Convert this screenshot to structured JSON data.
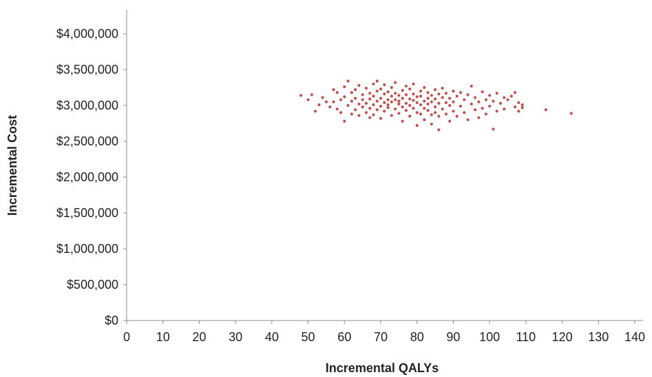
{
  "chart_data": {
    "type": "scatter",
    "xlabel": "Incremental QALYs",
    "ylabel": "Incremental Cost",
    "xlim": [
      0,
      140
    ],
    "ylim": [
      0,
      4000000
    ],
    "x_ticks": [
      0,
      10,
      20,
      30,
      40,
      50,
      60,
      70,
      80,
      90,
      100,
      110,
      120,
      130,
      140
    ],
    "x_tick_labels": [
      "0",
      "10",
      "20",
      "30",
      "40",
      "50",
      "60",
      "70",
      "80",
      "90",
      "100",
      "110",
      "120",
      "130",
      "140"
    ],
    "y_ticks": [
      0,
      500000,
      1000000,
      1500000,
      2000000,
      2500000,
      3000000,
      3500000,
      4000000
    ],
    "y_tick_labels": [
      "$0",
      "$500,000",
      "$1,000,000",
      "$1,500,000",
      "$2,000,000",
      "$2,500,000",
      "$3,000,000",
      "$3,500,000",
      "$4,000,000"
    ],
    "grid": false,
    "legend": "none",
    "marker_color": "#C0504D",
    "series": [
      {
        "points": [
          [
            48,
            3140000
          ],
          [
            50,
            3080000
          ],
          [
            51,
            3150000
          ],
          [
            52,
            2920000
          ],
          [
            53,
            3010000
          ],
          [
            54,
            3110000
          ],
          [
            55,
            3050000
          ],
          [
            56,
            2980000
          ],
          [
            57,
            3220000
          ],
          [
            57,
            3050000
          ],
          [
            58,
            2950000
          ],
          [
            58,
            3180000
          ],
          [
            59,
            3080000
          ],
          [
            59,
            2900000
          ],
          [
            60,
            2780000
          ],
          [
            60,
            3260000
          ],
          [
            60,
            3120000
          ],
          [
            61,
            3000000
          ],
          [
            61,
            3340000
          ],
          [
            62,
            3180000
          ],
          [
            62,
            2880000
          ],
          [
            62,
            3060000
          ],
          [
            63,
            3220000
          ],
          [
            63,
            2940000
          ],
          [
            63,
            3100000
          ],
          [
            64,
            3020000
          ],
          [
            64,
            3280000
          ],
          [
            64,
            2860000
          ],
          [
            65,
            3150000
          ],
          [
            65,
            2980000
          ],
          [
            65,
            3080000
          ],
          [
            66,
            3240000
          ],
          [
            66,
            2900000
          ],
          [
            66,
            3030000
          ],
          [
            67,
            3170000
          ],
          [
            67,
            2830000
          ],
          [
            67,
            3090000
          ],
          [
            67,
            2960000
          ],
          [
            68,
            3300000
          ],
          [
            68,
            3130000
          ],
          [
            68,
            3010000
          ],
          [
            68,
            2870000
          ],
          [
            69,
            3200000
          ],
          [
            69,
            3060000
          ],
          [
            69,
            2940000
          ],
          [
            69,
            3340000
          ],
          [
            70,
            3100000
          ],
          [
            70,
            2990000
          ],
          [
            70,
            3230000
          ],
          [
            70,
            2820000
          ],
          [
            71,
            3160000
          ],
          [
            71,
            3040000
          ],
          [
            71,
            2920000
          ],
          [
            71,
            3290000
          ],
          [
            72,
            3080000
          ],
          [
            72,
            2970000
          ],
          [
            72,
            3190000
          ],
          [
            72,
            3010000
          ],
          [
            73,
            3130000
          ],
          [
            73,
            2860000
          ],
          [
            73,
            3250000
          ],
          [
            73,
            3050000
          ],
          [
            74,
            2950000
          ],
          [
            74,
            3170000
          ],
          [
            74,
            3080000
          ],
          [
            74,
            3320000
          ],
          [
            75,
            3020000
          ],
          [
            75,
            2890000
          ],
          [
            75,
            3140000
          ],
          [
            75,
            3060000
          ],
          [
            76,
            3210000
          ],
          [
            76,
            2980000
          ],
          [
            76,
            3100000
          ],
          [
            76,
            2780000
          ],
          [
            77,
            3270000
          ],
          [
            77,
            3030000
          ],
          [
            77,
            2930000
          ],
          [
            77,
            3150000
          ],
          [
            78,
            3090000
          ],
          [
            78,
            2850000
          ],
          [
            78,
            3230000
          ],
          [
            78,
            3000000
          ],
          [
            79,
            3160000
          ],
          [
            79,
            2960000
          ],
          [
            79,
            3070000
          ],
          [
            79,
            3300000
          ],
          [
            80,
            3120000
          ],
          [
            80,
            2900000
          ],
          [
            80,
            3040000
          ],
          [
            80,
            2720000
          ],
          [
            81,
            3200000
          ],
          [
            81,
            3010000
          ],
          [
            81,
            2880000
          ],
          [
            81,
            3130000
          ],
          [
            82,
            3060000
          ],
          [
            82,
            2960000
          ],
          [
            82,
            3250000
          ],
          [
            82,
            2800000
          ],
          [
            83,
            3100000
          ],
          [
            83,
            2930000
          ],
          [
            83,
            3180000
          ],
          [
            83,
            3020000
          ],
          [
            84,
            2870000
          ],
          [
            84,
            3140000
          ],
          [
            84,
            3050000
          ],
          [
            84,
            2740000
          ],
          [
            85,
            3220000
          ],
          [
            85,
            2980000
          ],
          [
            85,
            3090000
          ],
          [
            85,
            2900000
          ],
          [
            86,
            3160000
          ],
          [
            86,
            3030000
          ],
          [
            86,
            2660000
          ],
          [
            86,
            2850000
          ],
          [
            87,
            3110000
          ],
          [
            87,
            2950000
          ],
          [
            87,
            3240000
          ],
          [
            88,
            3040000
          ],
          [
            88,
            2880000
          ],
          [
            88,
            3170000
          ],
          [
            89,
            3000000
          ],
          [
            89,
            2780000
          ],
          [
            89,
            3100000
          ],
          [
            90,
            3200000
          ],
          [
            90,
            2920000
          ],
          [
            90,
            3050000
          ],
          [
            91,
            3130000
          ],
          [
            91,
            2850000
          ],
          [
            92,
            2990000
          ],
          [
            92,
            3180000
          ],
          [
            93,
            3080000
          ],
          [
            93,
            2900000
          ],
          [
            94,
            3150000
          ],
          [
            94,
            2800000
          ],
          [
            95,
            3020000
          ],
          [
            95,
            3270000
          ],
          [
            96,
            2940000
          ],
          [
            96,
            3110000
          ],
          [
            97,
            3050000
          ],
          [
            97,
            2830000
          ],
          [
            98,
            3190000
          ],
          [
            98,
            2960000
          ],
          [
            99,
            3080000
          ],
          [
            99,
            2880000
          ],
          [
            100,
            3140000
          ],
          [
            100,
            2990000
          ],
          [
            101,
            2670000
          ],
          [
            101,
            3060000
          ],
          [
            102,
            3170000
          ],
          [
            102,
            2920000
          ],
          [
            103,
            3030000
          ],
          [
            104,
            3110000
          ],
          [
            104,
            2950000
          ],
          [
            105,
            3080000
          ],
          [
            106,
            3130000
          ],
          [
            107,
            2980000
          ],
          [
            107,
            3180000
          ],
          [
            108,
            3040000
          ],
          [
            108,
            2920000
          ],
          [
            109,
            3010000
          ],
          [
            109,
            2970000
          ],
          [
            115.5,
            2940000
          ],
          [
            122.5,
            2890000
          ]
        ]
      }
    ]
  }
}
